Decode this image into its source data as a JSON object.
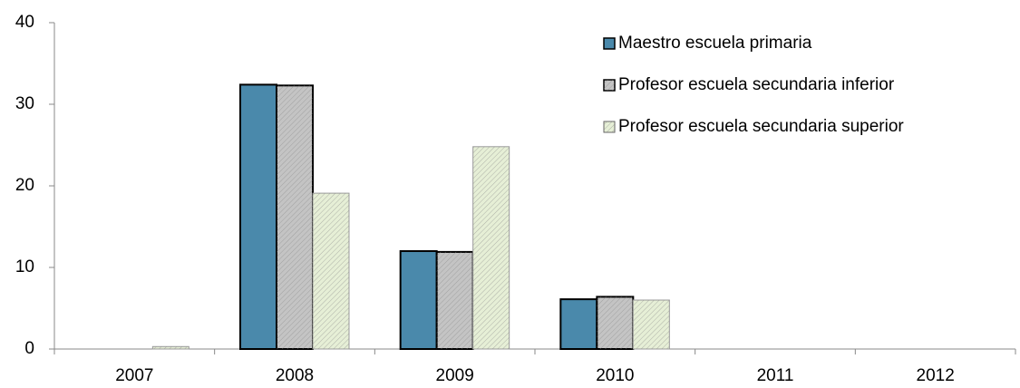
{
  "chart_data": {
    "type": "bar",
    "categories": [
      "2007",
      "2008",
      "2009",
      "2010",
      "2011",
      "2012"
    ],
    "series": [
      {
        "name": "Maestro escuela primaria",
        "color": "#4a89ab",
        "values": [
          0,
          32.4,
          12.0,
          6.1,
          0,
          0
        ]
      },
      {
        "name": "Profesor escuela secundaria inferior",
        "color": "#c4c4c4",
        "values": [
          0,
          32.3,
          11.9,
          6.4,
          0,
          0
        ]
      },
      {
        "name": "Profesor escuela secundaria superior",
        "color": "#e6efd6",
        "values": [
          0.3,
          19.1,
          24.8,
          6.0,
          0,
          0
        ]
      }
    ],
    "ylim": [
      0,
      40
    ],
    "yticks": [
      0,
      10,
      20,
      30,
      40
    ],
    "grid": false,
    "legend": "upper-right"
  }
}
